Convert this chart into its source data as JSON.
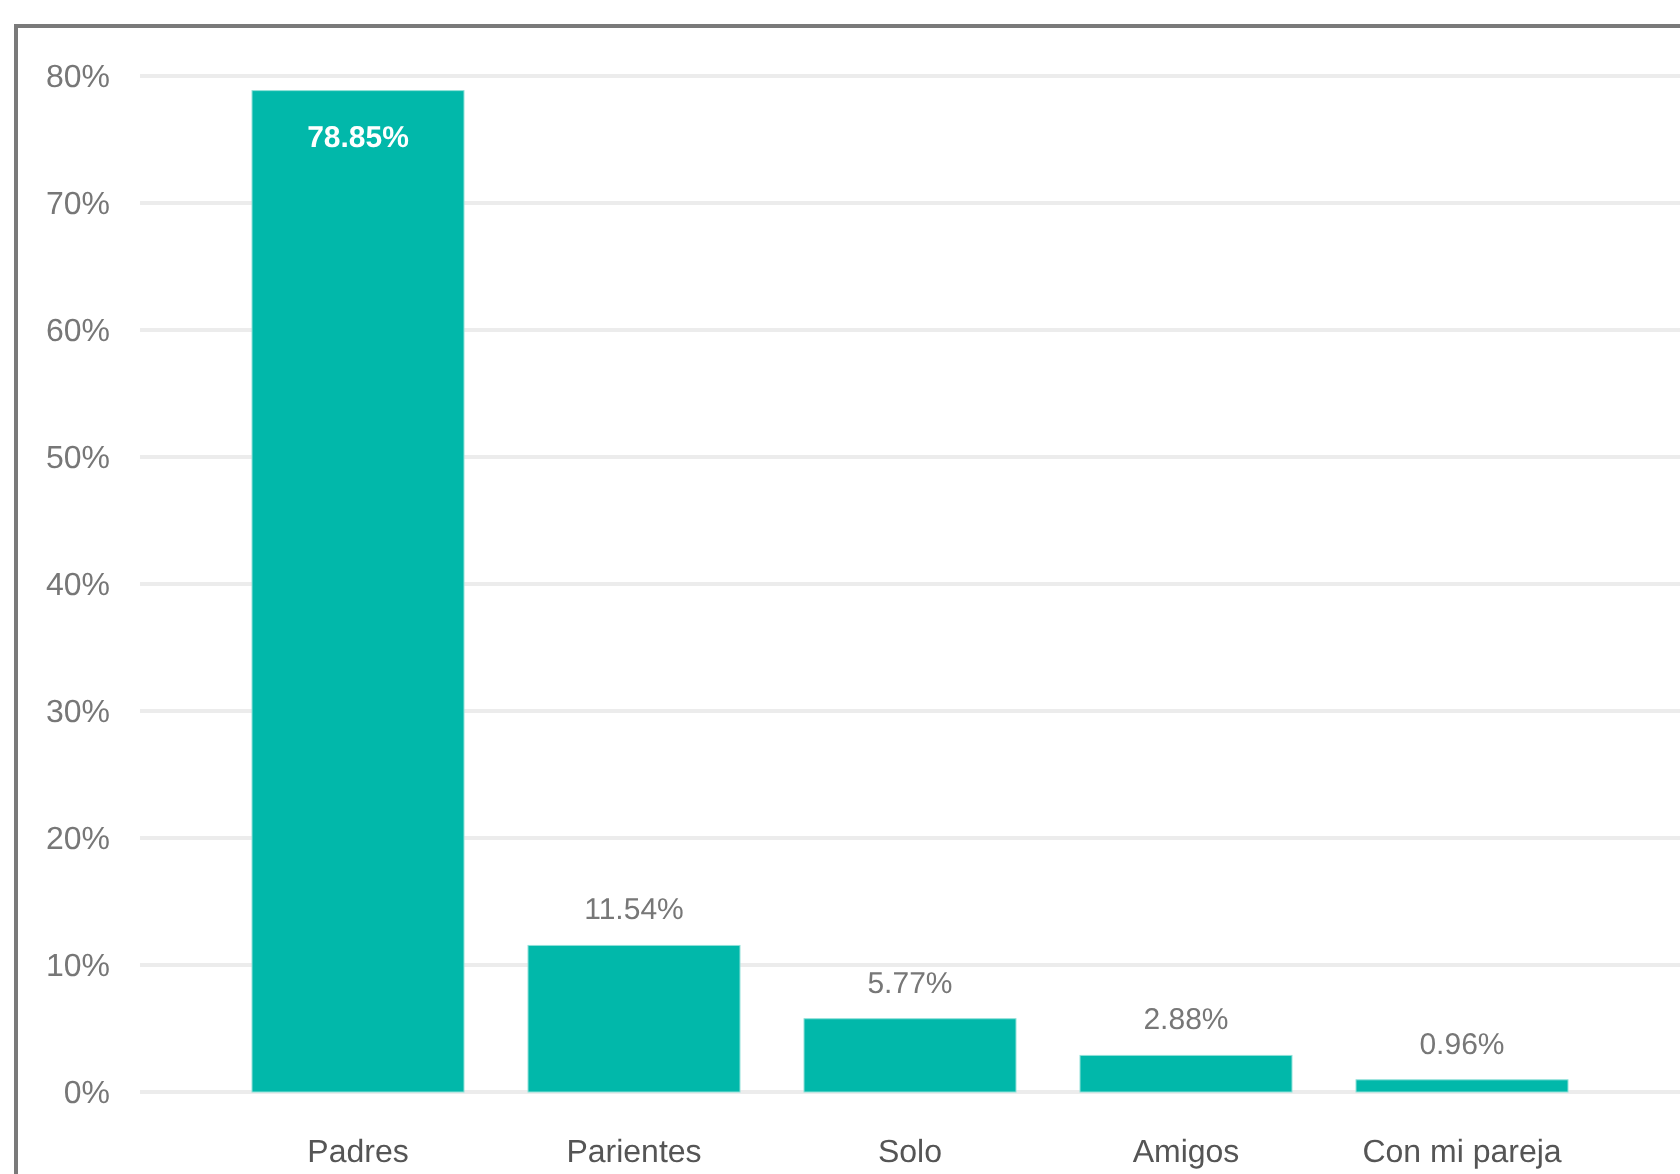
{
  "chart_data": {
    "type": "bar",
    "categories": [
      "Padres",
      "Parientes",
      "Solo",
      "Amigos",
      "Con mi pareja"
    ],
    "values": [
      78.85,
      11.54,
      5.77,
      2.88,
      0.96
    ],
    "value_labels": [
      "78.85%",
      "11.54%",
      "5.77%",
      "2.88%",
      "0.96%"
    ],
    "color": "#01b8aa",
    "ylim": [
      0,
      80
    ],
    "yticks": [
      {
        "value": 0,
        "label": "0%"
      },
      {
        "value": 10,
        "label": "10%"
      },
      {
        "value": 20,
        "label": "20%"
      },
      {
        "value": 30,
        "label": "30%"
      },
      {
        "value": 40,
        "label": "40%"
      },
      {
        "value": 50,
        "label": "50%"
      },
      {
        "value": 60,
        "label": "60%"
      },
      {
        "value": 70,
        "label": "70%"
      },
      {
        "value": 80,
        "label": "80%"
      }
    ],
    "grid": "y"
  }
}
